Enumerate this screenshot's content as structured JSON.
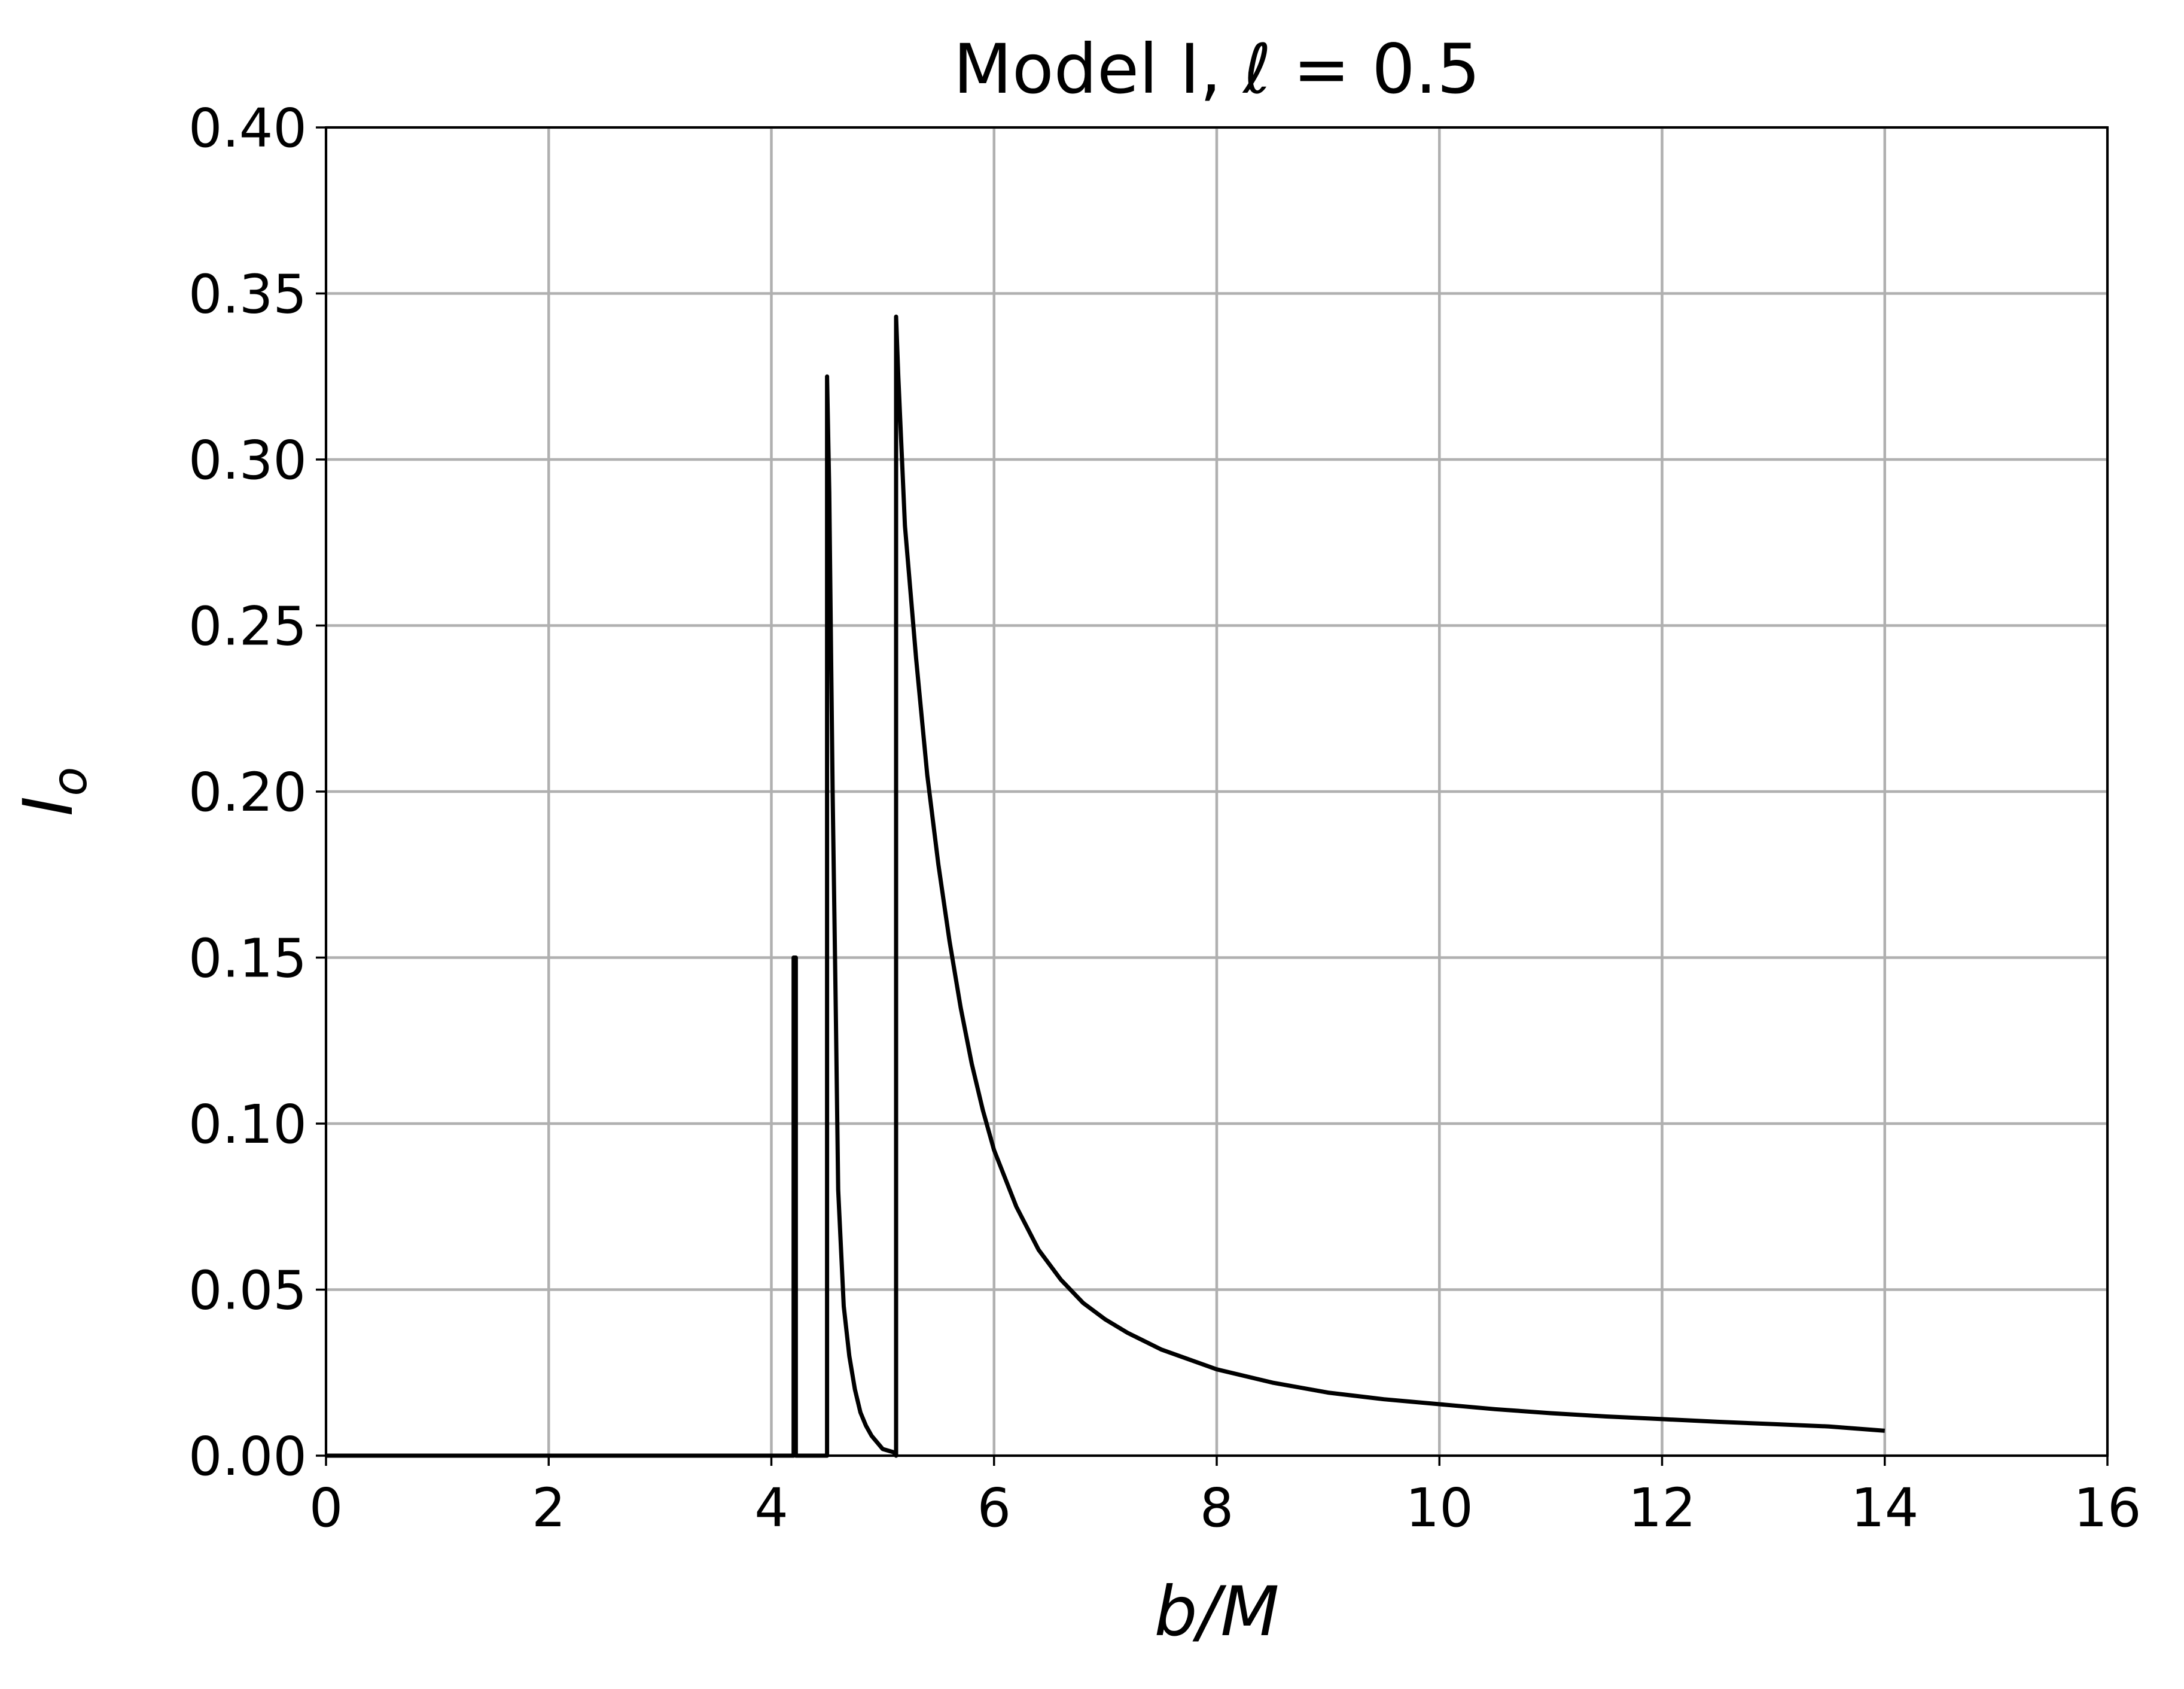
{
  "chart_data": {
    "type": "line",
    "title": "Model I, ℓ = 0.5",
    "xlabel": "b/M",
    "ylabel": "I_o",
    "xlim": [
      0,
      16
    ],
    "ylim": [
      0,
      0.4
    ],
    "x_ticks": [
      "0",
      "2",
      "4",
      "6",
      "8",
      "10",
      "12",
      "14",
      "16"
    ],
    "y_ticks": [
      "0.00",
      "0.05",
      "0.10",
      "0.15",
      "0.20",
      "0.25",
      "0.30",
      "0.35",
      "0.40"
    ],
    "grid": true,
    "legend": "none",
    "colors": {
      "line": "#000000",
      "grid": "#b0b0b0"
    },
    "series": [
      {
        "x": [
          0,
          4.2,
          4.2,
          4.22,
          4.22,
          4.25,
          4.25,
          4.5,
          4.5,
          4.52,
          4.55,
          4.58,
          4.6,
          4.65,
          4.7,
          4.75,
          4.8,
          4.85,
          4.9,
          5.0,
          5.1,
          5.12,
          5.12,
          5.14,
          5.2,
          5.3,
          5.4,
          5.5,
          5.6,
          5.7,
          5.8,
          5.9,
          6.0,
          6.2,
          6.4,
          6.6,
          6.8,
          7.0,
          7.2,
          7.5,
          8.0,
          8.5,
          9.0,
          9.5,
          10.0,
          10.5,
          11.0,
          11.5,
          12.0,
          12.5,
          13.0,
          13.5,
          14.0
        ],
        "y": [
          0,
          0,
          0.15,
          0.15,
          0,
          0,
          0,
          0,
          0.325,
          0.29,
          0.2,
          0.13,
          0.08,
          0.045,
          0.03,
          0.02,
          0.013,
          0.009,
          0.006,
          0.002,
          0.001,
          0.0,
          0.343,
          0.325,
          0.28,
          0.24,
          0.205,
          0.178,
          0.155,
          0.135,
          0.118,
          0.104,
          0.092,
          0.075,
          0.062,
          0.053,
          0.046,
          0.041,
          0.037,
          0.032,
          0.026,
          0.022,
          0.019,
          0.017,
          0.0155,
          0.014,
          0.0128,
          0.0118,
          0.011,
          0.0102,
          0.0095,
          0.0088,
          0.0075
        ]
      }
    ]
  }
}
